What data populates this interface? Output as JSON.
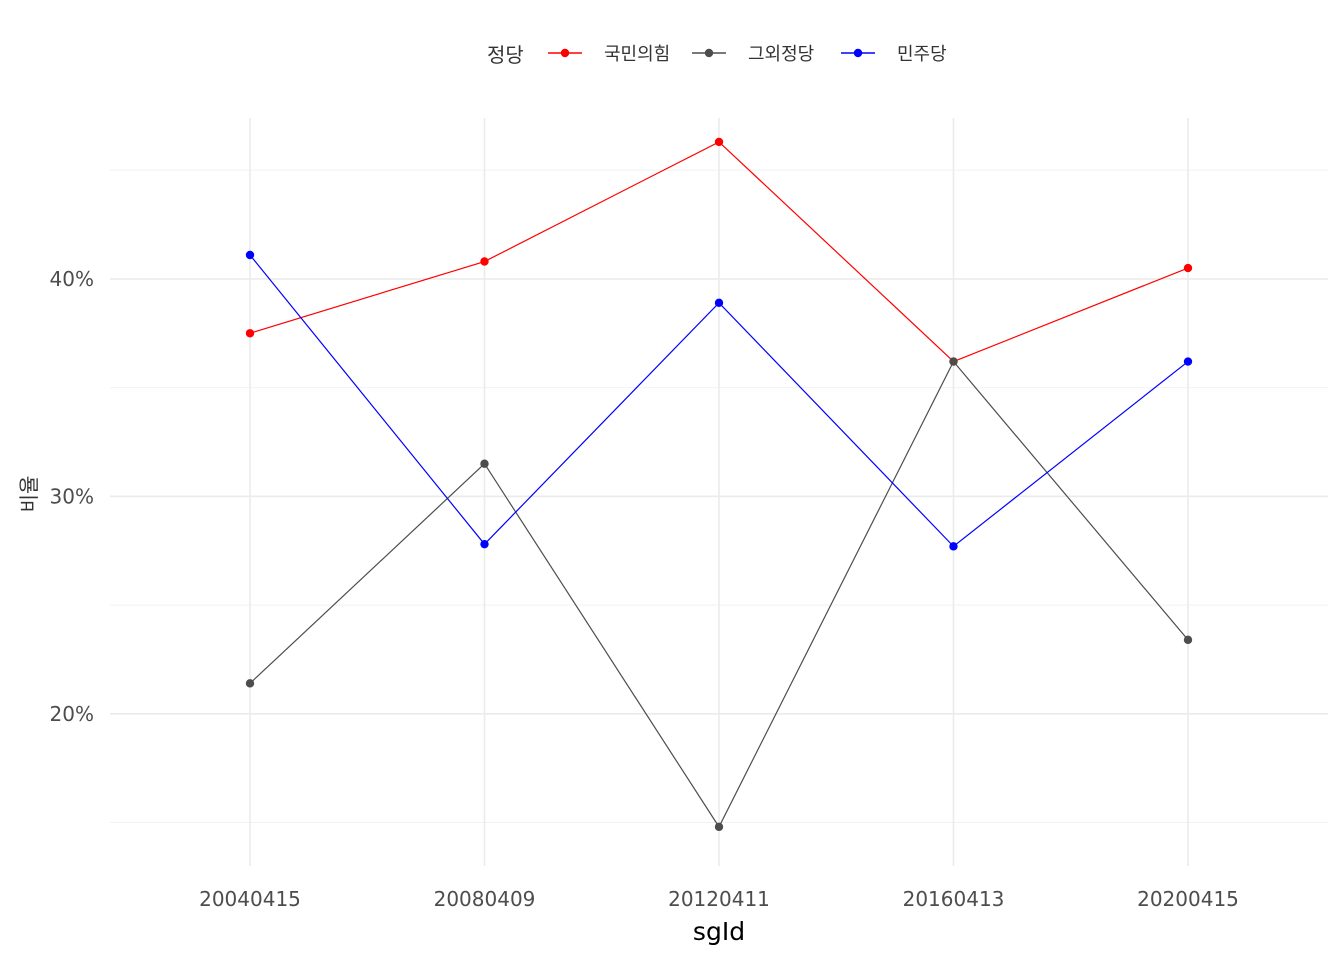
{
  "chart_data": {
    "type": "line",
    "xlabel": "sgId",
    "ylabel": "비율",
    "categories": [
      "20040415",
      "20080409",
      "20120411",
      "20160413",
      "20200415"
    ],
    "y_tick_values": [
      0.2,
      0.3,
      0.4
    ],
    "y_tick_labels": [
      "20%",
      "30%",
      "40%"
    ],
    "y_minor_ticks": [
      0.15,
      0.25,
      0.35,
      0.45
    ],
    "ylim": [
      0.13,
      0.474
    ],
    "grid": true,
    "legend": {
      "title": "정당",
      "position": "top"
    },
    "series": [
      {
        "name": "국민의힘",
        "color": "#ff0000",
        "values": [
          0.375,
          0.408,
          0.463,
          0.362,
          0.405
        ]
      },
      {
        "name": "그외정당",
        "color": "#4d4d4d",
        "values": [
          0.214,
          0.315,
          0.148,
          0.362,
          0.234
        ]
      },
      {
        "name": "민주당",
        "color": "#0000ff",
        "values": [
          0.411,
          0.278,
          0.389,
          0.277,
          0.362
        ]
      }
    ]
  }
}
